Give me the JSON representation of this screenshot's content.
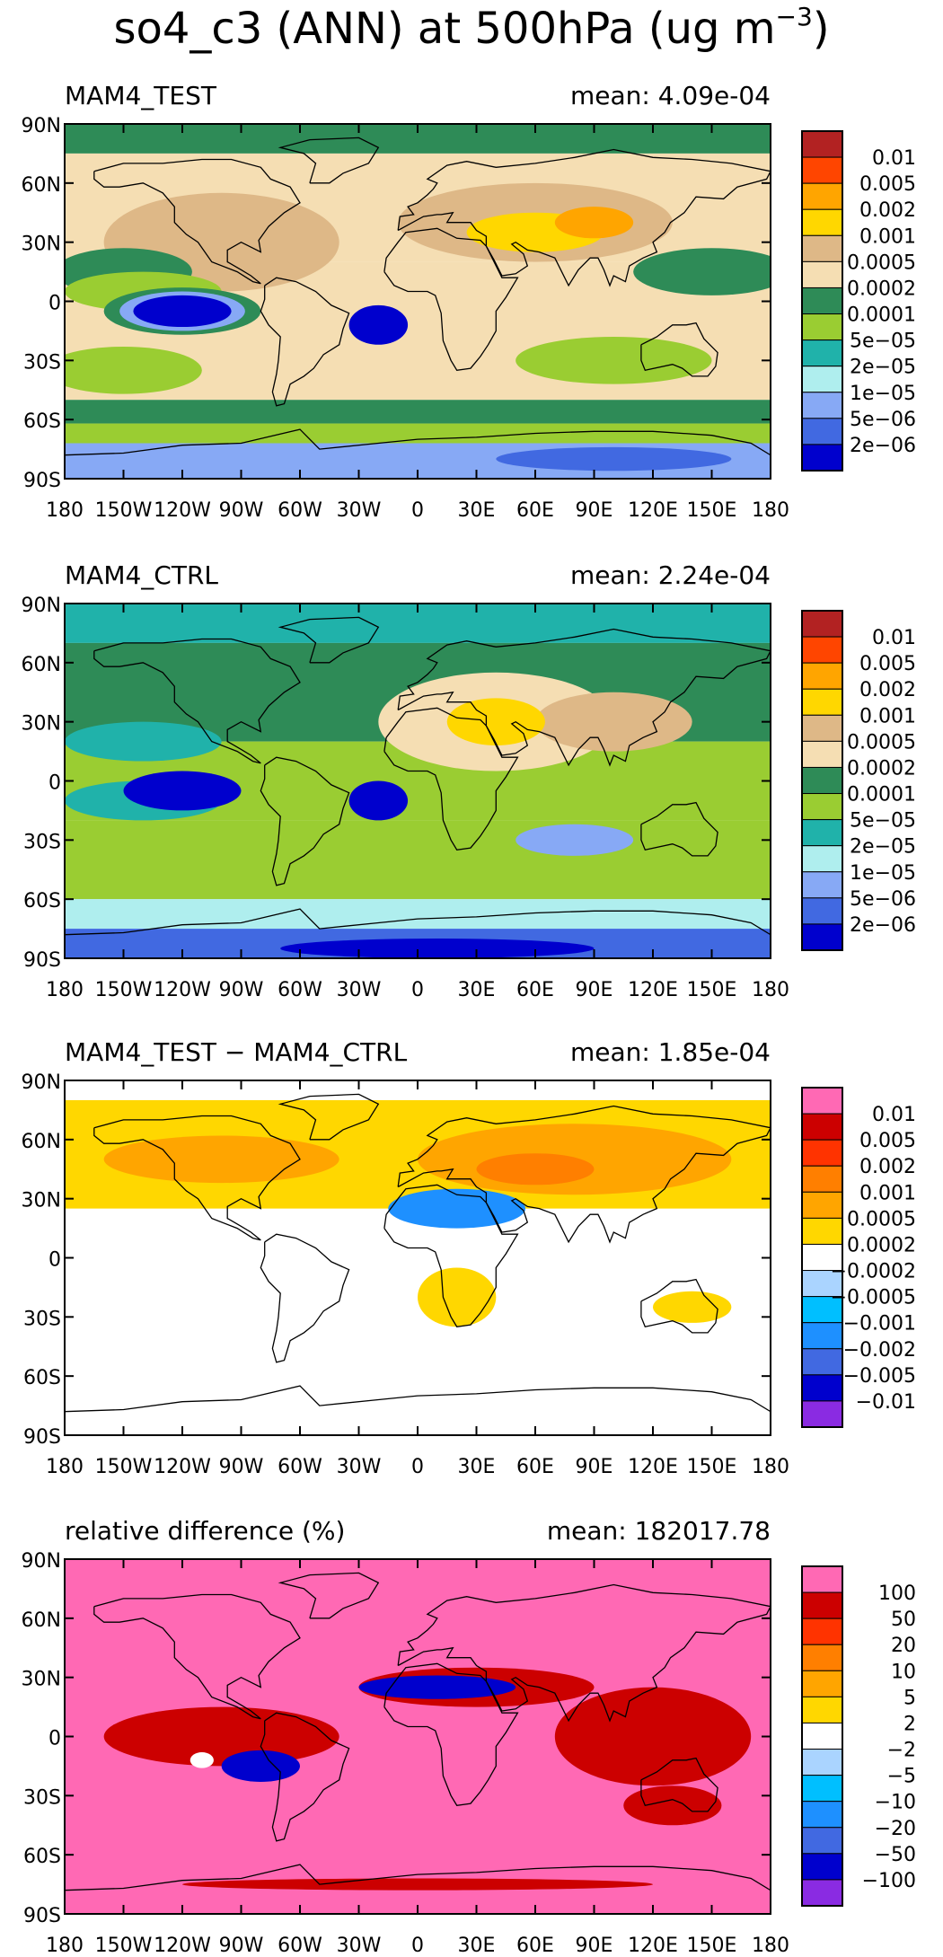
{
  "figure": {
    "title_main": "so4_c3 (ANN) at 500hPa (ug m",
    "title_exp": "−3",
    "title_close": ")"
  },
  "axes": {
    "lon_ticks": [
      "180",
      "150W",
      "120W",
      "90W",
      "60W",
      "30W",
      "0",
      "30E",
      "60E",
      "90E",
      "120E",
      "150E",
      "180"
    ],
    "lat_ticks": [
      "90N",
      "60N",
      "30N",
      "0",
      "30S",
      "60S",
      "90S"
    ]
  },
  "panels": [
    {
      "label": "MAM4_TEST",
      "mean_label": "mean:",
      "mean_value": "4.09e-04",
      "colorbar": {
        "labels": [
          "0.01",
          "0.005",
          "0.002",
          "0.001",
          "0.0005",
          "0.0002",
          "0.0001",
          "5e−05",
          "2e−05",
          "1e−05",
          "5e−06",
          "2e−06"
        ],
        "colors": [
          "#b22222",
          "#ff4500",
          "#ffa500",
          "#ffd700",
          "#deb887",
          "#f5deb3",
          "#2e8b57",
          "#9acd32",
          "#20b2aa",
          "#afeeee",
          "#87a9f5",
          "#4169e1",
          "#0000cd"
        ]
      },
      "regions": [
        {
          "kind": "band",
          "latN": 90,
          "latS": 75,
          "color": "#2e8b57"
        },
        {
          "kind": "band",
          "latN": 75,
          "latS": 20,
          "color": "#f5deb3"
        },
        {
          "kind": "band",
          "latN": 20,
          "latS": -18,
          "color": "#f5deb3"
        },
        {
          "kind": "band",
          "latN": -18,
          "latS": -50,
          "color": "#f5deb3"
        },
        {
          "kind": "band",
          "latN": -50,
          "latS": -62,
          "color": "#2e8b57"
        },
        {
          "kind": "band",
          "latN": -62,
          "latS": -72,
          "color": "#9acd32"
        },
        {
          "kind": "band",
          "latN": -72,
          "latS": -90,
          "color": "#87a9f5"
        },
        {
          "kind": "blob",
          "lon": -100,
          "lat": 30,
          "rx": 60,
          "ry": 25,
          "color": "#deb887"
        },
        {
          "kind": "blob",
          "lon": 60,
          "lat": 40,
          "rx": 70,
          "ry": 20,
          "color": "#deb887"
        },
        {
          "kind": "blob",
          "lon": -150,
          "lat": 15,
          "rx": 35,
          "ry": 12,
          "color": "#2e8b57"
        },
        {
          "kind": "blob",
          "lon": 150,
          "lat": 15,
          "rx": 40,
          "ry": 12,
          "color": "#2e8b57"
        },
        {
          "kind": "blob",
          "lon": -140,
          "lat": 5,
          "rx": 40,
          "ry": 10,
          "color": "#9acd32"
        },
        {
          "kind": "blob",
          "lon": -150,
          "lat": -35,
          "rx": 40,
          "ry": 12,
          "color": "#9acd32"
        },
        {
          "kind": "blob",
          "lon": 100,
          "lat": -30,
          "rx": 50,
          "ry": 12,
          "color": "#9acd32"
        },
        {
          "kind": "blob",
          "lon": 60,
          "lat": 35,
          "rx": 35,
          "ry": 10,
          "color": "#ffd700"
        },
        {
          "kind": "blob",
          "lon": 90,
          "lat": 40,
          "rx": 20,
          "ry": 8,
          "color": "#ffa500"
        },
        {
          "kind": "blob",
          "lon": -120,
          "lat": -5,
          "rx": 40,
          "ry": 12,
          "color": "#2e8b57"
        },
        {
          "kind": "blob",
          "lon": -120,
          "lat": -5,
          "rx": 32,
          "ry": 10,
          "color": "#87a9f5"
        },
        {
          "kind": "blob",
          "lon": -120,
          "lat": -5,
          "rx": 25,
          "ry": 8,
          "color": "#0000cd"
        },
        {
          "kind": "blob",
          "lon": -20,
          "lat": -12,
          "rx": 15,
          "ry": 10,
          "color": "#0000cd"
        },
        {
          "kind": "blob",
          "lon": 100,
          "lat": -80,
          "rx": 60,
          "ry": 6,
          "color": "#4169e1"
        }
      ]
    },
    {
      "label": "MAM4_CTRL",
      "mean_label": "mean:",
      "mean_value": "2.24e-04",
      "colorbar": {
        "labels": [
          "0.01",
          "0.005",
          "0.002",
          "0.001",
          "0.0005",
          "0.0002",
          "0.0001",
          "5e−05",
          "2e−05",
          "1e−05",
          "5e−06",
          "2e−06"
        ],
        "colors": [
          "#b22222",
          "#ff4500",
          "#ffa500",
          "#ffd700",
          "#deb887",
          "#f5deb3",
          "#2e8b57",
          "#9acd32",
          "#20b2aa",
          "#afeeee",
          "#87a9f5",
          "#4169e1",
          "#0000cd"
        ]
      },
      "regions": [
        {
          "kind": "band",
          "latN": 90,
          "latS": 70,
          "color": "#20b2aa"
        },
        {
          "kind": "band",
          "latN": 70,
          "latS": 20,
          "color": "#2e8b57"
        },
        {
          "kind": "band",
          "latN": 20,
          "latS": -20,
          "color": "#9acd32"
        },
        {
          "kind": "band",
          "latN": -20,
          "latS": -60,
          "color": "#9acd32"
        },
        {
          "kind": "band",
          "latN": -60,
          "latS": -75,
          "color": "#afeeee"
        },
        {
          "kind": "band",
          "latN": -75,
          "latS": -90,
          "color": "#4169e1"
        },
        {
          "kind": "blob",
          "lon": 40,
          "lat": 30,
          "rx": 60,
          "ry": 25,
          "color": "#f5deb3"
        },
        {
          "kind": "blob",
          "lon": 100,
          "lat": 30,
          "rx": 40,
          "ry": 15,
          "color": "#deb887"
        },
        {
          "kind": "blob",
          "lon": 40,
          "lat": 30,
          "rx": 25,
          "ry": 12,
          "color": "#ffd700"
        },
        {
          "kind": "blob",
          "lon": -140,
          "lat": 20,
          "rx": 40,
          "ry": 10,
          "color": "#20b2aa"
        },
        {
          "kind": "blob",
          "lon": -140,
          "lat": -10,
          "rx": 40,
          "ry": 10,
          "color": "#20b2aa"
        },
        {
          "kind": "blob",
          "lon": -120,
          "lat": -5,
          "rx": 30,
          "ry": 10,
          "color": "#0000cd"
        },
        {
          "kind": "blob",
          "lon": -20,
          "lat": -10,
          "rx": 15,
          "ry": 10,
          "color": "#0000cd"
        },
        {
          "kind": "blob",
          "lon": 80,
          "lat": -30,
          "rx": 30,
          "ry": 8,
          "color": "#87a9f5"
        },
        {
          "kind": "blob",
          "lon": 10,
          "lat": -85,
          "rx": 80,
          "ry": 5,
          "color": "#0000cd"
        }
      ]
    },
    {
      "label": "MAM4_TEST − MAM4_CTRL",
      "mean_label": "mean:",
      "mean_value": "1.85e-04",
      "colorbar": {
        "labels": [
          "0.01",
          "0.005",
          "0.002",
          "0.001",
          "0.0005",
          "0.0002",
          "−0.0002",
          "−0.0005",
          "−0.001",
          "−0.002",
          "−0.005",
          "−0.01"
        ],
        "colors": [
          "#ff69b4",
          "#cc0000",
          "#ff3300",
          "#ff7f00",
          "#ffa500",
          "#ffd700",
          "#ffffff",
          "#aad4ff",
          "#00bfff",
          "#1e90ff",
          "#4169e1",
          "#0000cd",
          "#8a2be2"
        ]
      },
      "regions": [
        {
          "kind": "band",
          "latN": 90,
          "latS": 80,
          "color": "#ffffff"
        },
        {
          "kind": "band",
          "latN": 80,
          "latS": 25,
          "color": "#ffd700"
        },
        {
          "kind": "blob",
          "lon": 80,
          "lat": 50,
          "rx": 80,
          "ry": 18,
          "color": "#ffa500"
        },
        {
          "kind": "blob",
          "lon": -100,
          "lat": 50,
          "rx": 60,
          "ry": 12,
          "color": "#ffa500"
        },
        {
          "kind": "blob",
          "lon": 60,
          "lat": 45,
          "rx": 30,
          "ry": 8,
          "color": "#ff7f00"
        },
        {
          "kind": "blob",
          "lon": 20,
          "lat": 25,
          "rx": 35,
          "ry": 10,
          "color": "#1e90ff"
        },
        {
          "kind": "blob",
          "lon": 20,
          "lat": -20,
          "rx": 20,
          "ry": 15,
          "color": "#ffd700"
        },
        {
          "kind": "blob",
          "lon": 140,
          "lat": -25,
          "rx": 20,
          "ry": 8,
          "color": "#ffd700"
        }
      ]
    },
    {
      "label": "relative difference (%)",
      "mean_label": "mean:",
      "mean_value": "182017.78",
      "colorbar": {
        "labels": [
          "100",
          "50",
          "20",
          "10",
          "5",
          "2",
          "−2",
          "−5",
          "−10",
          "−20",
          "−50",
          "−100"
        ],
        "colors": [
          "#ff69b4",
          "#cc0000",
          "#ff3300",
          "#ff7f00",
          "#ffa500",
          "#ffd700",
          "#ffffff",
          "#aad4ff",
          "#00bfff",
          "#1e90ff",
          "#4169e1",
          "#0000cd",
          "#8a2be2"
        ]
      },
      "regions": [
        {
          "kind": "band",
          "latN": 90,
          "latS": -90,
          "color": "#ff69b4"
        },
        {
          "kind": "blob",
          "lon": 30,
          "lat": 25,
          "rx": 60,
          "ry": 10,
          "color": "#cc0000"
        },
        {
          "kind": "blob",
          "lon": 10,
          "lat": 25,
          "rx": 40,
          "ry": 6,
          "color": "#0000cd"
        },
        {
          "kind": "blob",
          "lon": 120,
          "lat": 0,
          "rx": 50,
          "ry": 25,
          "color": "#cc0000"
        },
        {
          "kind": "blob",
          "lon": -100,
          "lat": 0,
          "rx": 60,
          "ry": 15,
          "color": "#cc0000"
        },
        {
          "kind": "blob",
          "lon": -80,
          "lat": -15,
          "rx": 20,
          "ry": 8,
          "color": "#0000cd"
        },
        {
          "kind": "blob",
          "lon": -110,
          "lat": -12,
          "rx": 6,
          "ry": 4,
          "color": "#ffffff"
        },
        {
          "kind": "blob",
          "lon": 130,
          "lat": -35,
          "rx": 25,
          "ry": 10,
          "color": "#cc0000"
        },
        {
          "kind": "blob",
          "lon": 0,
          "lat": -75,
          "rx": 120,
          "ry": 3,
          "color": "#cc0000"
        }
      ]
    }
  ]
}
